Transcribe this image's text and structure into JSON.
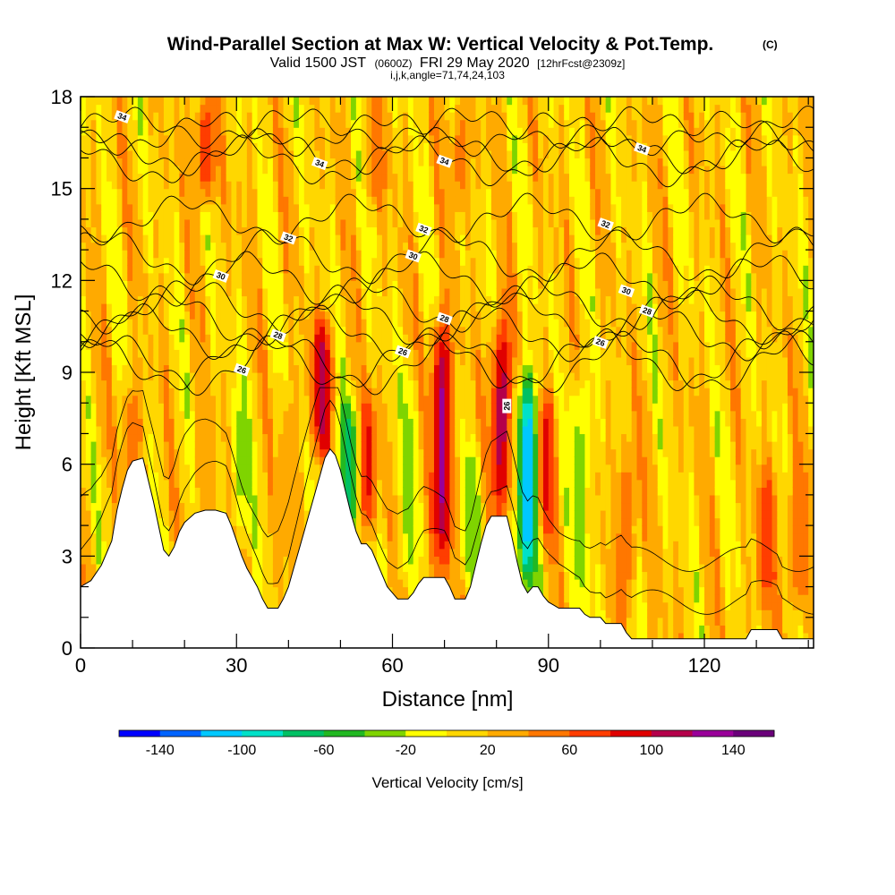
{
  "header": {
    "title": "Wind-Parallel Section at Max W: Vertical Velocity & Pot.Temp.",
    "copyright": "(C)",
    "valid_prefix": "Valid 1500 JST",
    "valid_z": "(0600Z)",
    "valid_date": "FRI 29 May 2020",
    "forecast": "[12hrFcst@2309z]",
    "params": "i,j,k,angle=71,74,24,103"
  },
  "chart_data": {
    "type": "heatmap",
    "title": "Wind-Parallel Section at Max W: Vertical Velocity & Pot.Temp.",
    "xlabel": "Distance [nm]",
    "ylabel": "Height [Kft MSL]",
    "xlim": [
      0,
      141
    ],
    "ylim": [
      0,
      18
    ],
    "x_ticks": [
      0,
      30,
      60,
      90,
      120
    ],
    "y_ticks": [
      0,
      3,
      6,
      9,
      12,
      15,
      18
    ],
    "colorbar": {
      "label": "Vertical Velocity [cm/s]",
      "range": [
        -160,
        160
      ],
      "step": 20,
      "tick_values": [
        -140,
        -100,
        -60,
        -20,
        20,
        60,
        100,
        140
      ],
      "tick_labels": [
        "-140",
        "-100",
        "-60",
        "-20",
        "20",
        "60",
        "100",
        "140"
      ],
      "colors": [
        "#0000ff",
        "#0064ff",
        "#00c8ff",
        "#00e1c8",
        "#00c064",
        "#22b822",
        "#7fd400",
        "#ffff00",
        "#ffd700",
        "#ffaa00",
        "#ff7700",
        "#ff3d00",
        "#e00000",
        "#b4004b",
        "#9a009a",
        "#6a007a"
      ]
    },
    "updrafts": [
      {
        "x": 10,
        "z0": 3.5,
        "z1": 8.8,
        "w": 55
      },
      {
        "x": 24,
        "z0": 3.0,
        "z1": 8.0,
        "w": 40
      },
      {
        "x": 40,
        "z0": 2.5,
        "z1": 8.5,
        "w": 30
      },
      {
        "x": 46.5,
        "z0": 6.2,
        "z1": 10.8,
        "w": 115
      },
      {
        "x": 55,
        "z0": 3.8,
        "z1": 8.4,
        "w": 90
      },
      {
        "x": 69.5,
        "z0": 2.5,
        "z1": 10.8,
        "w": 125
      },
      {
        "x": 81,
        "z0": 4.2,
        "z1": 10.9,
        "w": 110
      },
      {
        "x": 89.5,
        "z0": 3.5,
        "z1": 8.5,
        "w": 95
      },
      {
        "x": 105,
        "z0": 1.0,
        "z1": 7.0,
        "w": 50
      },
      {
        "x": 132,
        "z0": 1.0,
        "z1": 6.2,
        "w": 70
      },
      {
        "x": 138,
        "z0": 1.0,
        "z1": 6.2,
        "w": 55
      },
      {
        "x": 24,
        "z0": 14.5,
        "z1": 18,
        "w": 75
      },
      {
        "x": 57,
        "z0": 14.5,
        "z1": 18,
        "w": 60
      },
      {
        "x": 73,
        "z0": 14.0,
        "z1": 18,
        "w": 45
      }
    ],
    "downdrafts": [
      {
        "x": 51.5,
        "z0": 3.8,
        "z1": 8.2,
        "w": -75
      },
      {
        "x": 75,
        "z0": 2.0,
        "z1": 6.5,
        "w": -35
      },
      {
        "x": 86,
        "z0": 2.0,
        "z1": 9.0,
        "w": -120
      },
      {
        "x": 31,
        "z0": 3.5,
        "z1": 9.0,
        "w": -25
      },
      {
        "x": 63,
        "z0": 2.0,
        "z1": 9.0,
        "w": -25
      },
      {
        "x": 96,
        "z0": 1.0,
        "z1": 9.0,
        "w": -30
      }
    ],
    "terrain": [
      [
        0,
        2
      ],
      [
        2,
        2.2
      ],
      [
        4,
        2.7
      ],
      [
        6,
        3.5
      ],
      [
        7,
        4.5
      ],
      [
        8,
        5.2
      ],
      [
        9,
        5.8
      ],
      [
        10,
        6.1
      ],
      [
        12,
        6.2
      ],
      [
        13,
        5.5
      ],
      [
        14,
        4.8
      ],
      [
        15,
        4
      ],
      [
        16,
        3.2
      ],
      [
        17,
        3.0
      ],
      [
        18,
        3.3
      ],
      [
        19,
        3.8
      ],
      [
        20,
        4.1
      ],
      [
        22,
        4.4
      ],
      [
        24,
        4.5
      ],
      [
        26,
        4.5
      ],
      [
        28,
        4.4
      ],
      [
        29,
        4.0
      ],
      [
        30,
        3.5
      ],
      [
        31,
        3.0
      ],
      [
        32,
        2.6
      ],
      [
        33,
        2.3
      ],
      [
        34,
        2.0
      ],
      [
        35,
        1.6
      ],
      [
        36,
        1.3
      ],
      [
        38,
        1.3
      ],
      [
        39,
        1.6
      ],
      [
        40,
        2.0
      ],
      [
        41,
        2.6
      ],
      [
        42,
        3.2
      ],
      [
        43,
        3.8
      ],
      [
        44,
        4.4
      ],
      [
        45,
        5.0
      ],
      [
        46,
        5.6
      ],
      [
        47,
        6.2
      ],
      [
        48,
        6.5
      ],
      [
        49,
        6.3
      ],
      [
        50,
        5.8
      ],
      [
        51,
        5.1
      ],
      [
        52,
        4.4
      ],
      [
        53,
        3.8
      ],
      [
        54,
        3.4
      ],
      [
        55,
        3.4
      ],
      [
        56,
        3.2
      ],
      [
        57,
        2.8
      ],
      [
        58,
        2.4
      ],
      [
        59,
        2.0
      ],
      [
        60,
        1.8
      ],
      [
        61,
        1.6
      ],
      [
        63,
        1.6
      ],
      [
        64,
        1.8
      ],
      [
        65,
        2.1
      ],
      [
        66,
        2.3
      ],
      [
        70,
        2.3
      ],
      [
        71,
        2.0
      ],
      [
        72,
        1.6
      ],
      [
        74,
        1.6
      ],
      [
        75,
        2.0
      ],
      [
        76,
        2.7
      ],
      [
        77,
        3.4
      ],
      [
        78,
        4.0
      ],
      [
        79,
        4.3
      ],
      [
        82,
        4.3
      ],
      [
        83,
        3.6
      ],
      [
        84,
        2.8
      ],
      [
        85,
        2.1
      ],
      [
        86,
        1.8
      ],
      [
        87,
        2.0
      ],
      [
        88,
        2.0
      ],
      [
        89,
        1.7
      ],
      [
        90,
        1.5
      ],
      [
        91,
        1.4
      ],
      [
        92,
        1.3
      ],
      [
        96,
        1.3
      ],
      [
        97,
        1.1
      ],
      [
        98,
        1.0
      ],
      [
        100,
        1.0
      ],
      [
        101,
        0.8
      ],
      [
        104,
        0.8
      ],
      [
        105,
        0.5
      ],
      [
        106,
        0.3
      ],
      [
        128,
        0.3
      ],
      [
        129,
        0.6
      ],
      [
        134,
        0.6
      ],
      [
        135,
        0.3
      ],
      [
        141,
        0.3
      ]
    ],
    "isentropes": [
      {
        "label": "34",
        "base": 17.0,
        "amp": 0.45,
        "label_x": 8
      },
      {
        "label": "34",
        "base": 16.2,
        "amp": 0.55,
        "label_x": 46
      },
      {
        "label": "34",
        "base": 15.9,
        "amp": 0.6,
        "label_x": 70
      },
      {
        "label": "34",
        "base": 16.8,
        "amp": 0.5,
        "label_x": 108
      },
      {
        "label": "32",
        "base": 14.0,
        "amp": 0.6,
        "label_x": 40
      },
      {
        "label": "32",
        "base": 14.0,
        "amp": 0.6,
        "label_x": 66
      },
      {
        "label": "32",
        "base": 14.0,
        "amp": 0.6,
        "label_x": 101
      },
      {
        "label": "30",
        "base": 12.8,
        "amp": 0.7,
        "label_x": 64
      },
      {
        "label": "30",
        "base": 12.0,
        "amp": 0.7,
        "label_x": 27
      },
      {
        "label": "30",
        "base": 12.0,
        "amp": 0.7,
        "label_x": 105
      },
      {
        "label": "28",
        "base": 11.2,
        "amp": 0.7,
        "label_x": 70
      },
      {
        "label": "28",
        "base": 10.8,
        "amp": 0.8,
        "label_x": 38
      },
      {
        "label": "28",
        "base": 10.3,
        "amp": 0.7,
        "label_x": 109
      },
      {
        "label": "26",
        "base": 9.3,
        "amp": 0.8,
        "label_x": 31
      },
      {
        "label": "26",
        "base": 9.4,
        "amp": 0.8,
        "label_x": 62
      },
      {
        "label": "26",
        "base": 9.4,
        "amp": 0.8,
        "label_x": 100
      },
      {
        "label": "26",
        "base": 7.9,
        "amp": 0.0,
        "label_x": 82
      }
    ]
  }
}
